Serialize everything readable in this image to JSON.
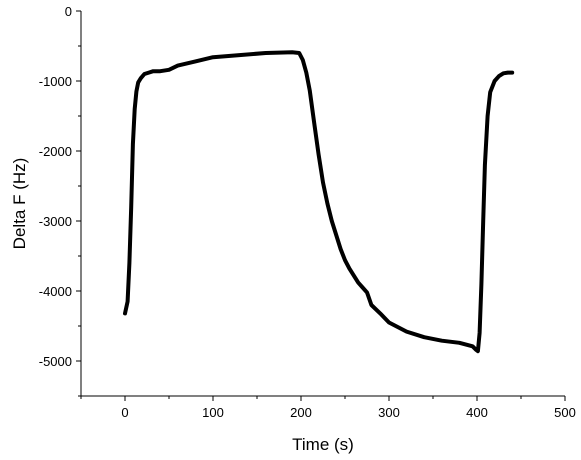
{
  "chart_data": {
    "type": "line",
    "title": "",
    "xlabel": "Time (s)",
    "ylabel": "Delta F (Hz)",
    "xlim": [
      -50,
      500
    ],
    "ylim": [
      -5500,
      0
    ],
    "x_ticks": [
      0,
      100,
      200,
      300,
      400,
      500
    ],
    "x_tick_labels": [
      "0",
      "100",
      "200",
      "300",
      "400",
      "500"
    ],
    "y_ticks": [
      0,
      -1000,
      -2000,
      -3000,
      -4000,
      -5000
    ],
    "y_tick_labels": [
      "0",
      "-1000",
      "-2000",
      "-3000",
      "-4000",
      "-5000"
    ],
    "grid": false,
    "legend": "none",
    "series": [
      {
        "color": "#000000",
        "x": [
          0,
          3,
          5,
          7,
          9,
          11,
          13,
          15,
          18,
          22,
          27,
          32,
          40,
          50,
          60,
          80,
          100,
          130,
          160,
          190,
          198,
          202,
          206,
          210,
          215,
          220,
          225,
          230,
          235,
          240,
          245,
          250,
          255,
          260,
          265,
          270,
          275,
          280,
          290,
          300,
          320,
          340,
          360,
          380,
          395,
          399,
          401,
          403,
          405,
          407,
          409,
          412,
          415,
          420,
          425,
          430,
          435,
          440
        ],
        "y": [
          -4320,
          -4150,
          -3600,
          -2800,
          -1900,
          -1400,
          -1150,
          -1020,
          -960,
          -900,
          -880,
          -860,
          -860,
          -840,
          -780,
          -720,
          -660,
          -630,
          -600,
          -590,
          -600,
          -700,
          -880,
          -1140,
          -1600,
          -2050,
          -2450,
          -2750,
          -3000,
          -3200,
          -3400,
          -3560,
          -3680,
          -3780,
          -3880,
          -3950,
          -4020,
          -4200,
          -4320,
          -4450,
          -4580,
          -4660,
          -4710,
          -4740,
          -4790,
          -4840,
          -4860,
          -4600,
          -3900,
          -3000,
          -2200,
          -1500,
          -1160,
          -1000,
          -930,
          -890,
          -880,
          -880
        ]
      }
    ]
  }
}
